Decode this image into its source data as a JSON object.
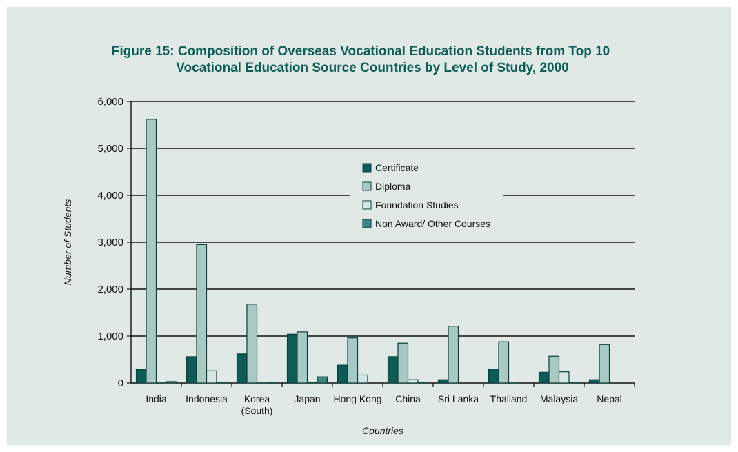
{
  "chart_data": {
    "type": "bar",
    "title_lines": [
      "Figure 15: Composition of Overseas Vocational Education Students from Top 10",
      "Vocational Education Source Countries by Level of Study, 2000"
    ],
    "xlabel": "Countries",
    "ylabel": "Number of Students",
    "ylim": [
      0,
      6000
    ],
    "yticks": [
      0,
      1000,
      2000,
      3000,
      4000,
      5000,
      6000
    ],
    "ytick_labels": [
      "0",
      "1,000",
      "2,000",
      "3,000",
      "4,000",
      "5,000",
      "6,000"
    ],
    "grid": true,
    "legend_position": "center",
    "categories": [
      [
        "India"
      ],
      [
        "Indonesia"
      ],
      [
        "Korea",
        "(South)"
      ],
      [
        "Japan"
      ],
      [
        "Hong Kong"
      ],
      [
        "China"
      ],
      [
        "Sri Lanka"
      ],
      [
        "Thailand"
      ],
      [
        "Malaysia"
      ],
      [
        "Nepal"
      ]
    ],
    "series": [
      {
        "name": "Certificate",
        "color": "#0e5a55",
        "values": [
          290,
          560,
          620,
          1040,
          380,
          560,
          70,
          300,
          230,
          70
        ]
      },
      {
        "name": "Diploma",
        "color": "#a9c9c3",
        "values": [
          5620,
          2950,
          1680,
          1090,
          960,
          850,
          1210,
          880,
          570,
          820
        ]
      },
      {
        "name": "Foundation Studies",
        "color": "#d7e6e2",
        "values": [
          20,
          260,
          20,
          10,
          170,
          70,
          0,
          20,
          240,
          0
        ]
      },
      {
        "name": "Non Award/ Other Courses",
        "color": "#3f8580",
        "values": [
          30,
          20,
          20,
          130,
          0,
          20,
          0,
          0,
          20,
          0
        ]
      }
    ]
  }
}
